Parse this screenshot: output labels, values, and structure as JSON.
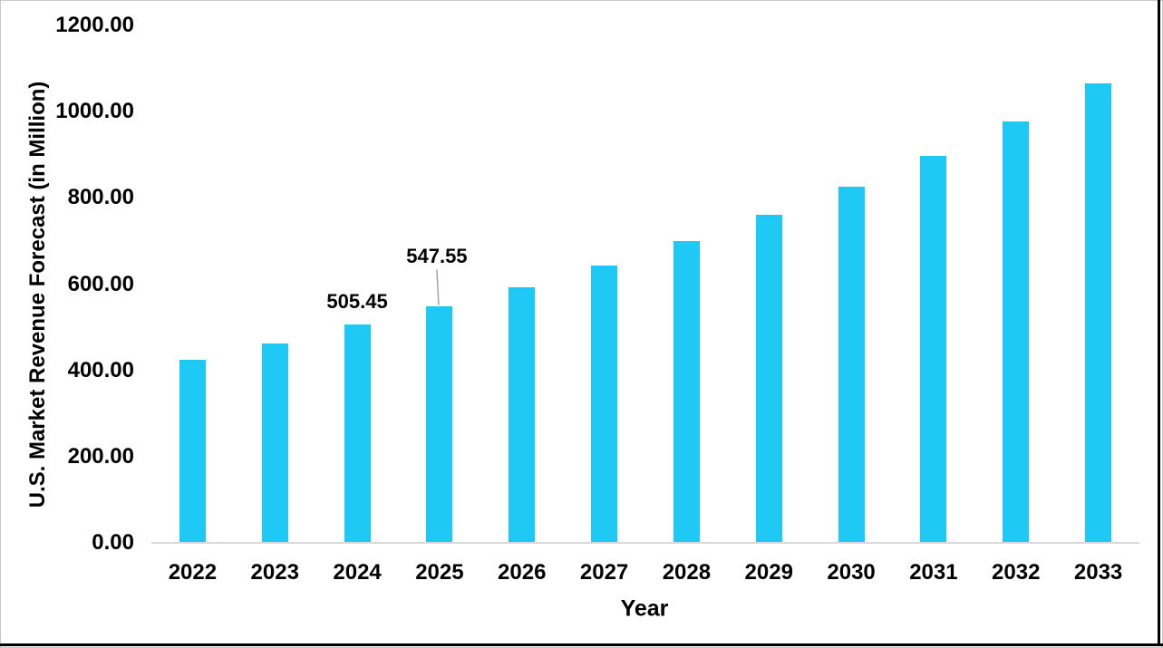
{
  "chart_data": {
    "type": "bar",
    "title": "",
    "xlabel": "Year",
    "ylabel": "U.S. Market Revenue Forecast (in Million)",
    "categories": [
      "2022",
      "2023",
      "2024",
      "2025",
      "2026",
      "2027",
      "2028",
      "2029",
      "2030",
      "2031",
      "2032",
      "2033"
    ],
    "values": [
      424,
      462,
      505.45,
      547.55,
      592,
      643,
      700,
      760,
      825,
      898,
      978,
      1066
    ],
    "labeled_points": [
      {
        "category": "2024",
        "index": 2,
        "text": "505.45",
        "leader_line": false
      },
      {
        "category": "2025",
        "index": 3,
        "text": "547.55",
        "leader_line": true
      }
    ],
    "ylim": [
      0,
      1200
    ],
    "ytick_interval": 200,
    "ytick_labels": [
      "0.00",
      "200.00",
      "400.00",
      "600.00",
      "800.00",
      "1000.00",
      "1200.00"
    ],
    "grid": false,
    "legend": false,
    "layout_hints": {
      "bar_orientation": "vertical",
      "data_label_positions": "above 2024 and 2025 bars only, 2025 label raised with leader line"
    },
    "colors": {
      "bar": "#1EC9F5",
      "axis_line": "#D9D9D9",
      "leader_line": "#A6A6A6",
      "text": "#000000",
      "background": "#FFFFFF",
      "border": "#000000"
    }
  }
}
